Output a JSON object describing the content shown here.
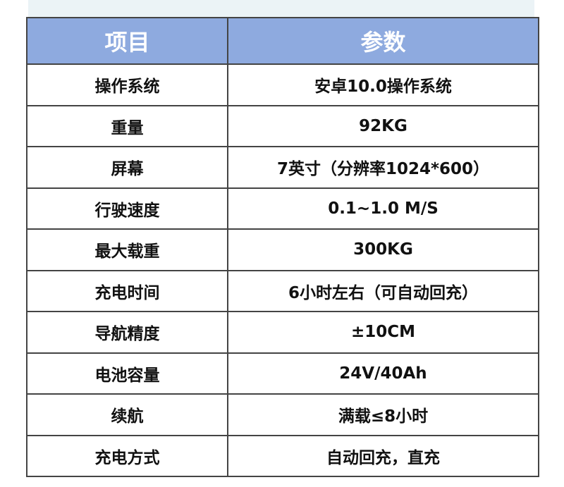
{
  "header": {
    "col1": "项目",
    "col2": "参数"
  },
  "colors": {
    "header_bg": "#8eaadf",
    "header_text": "#ffffff",
    "top_band": "#ebf3f6"
  },
  "rows": [
    {
      "item": "操作系统",
      "value": "安卓10.0操作系统"
    },
    {
      "item": "重量",
      "value": "92KG"
    },
    {
      "item": "屏幕",
      "value": "7英寸（分辨率1024*600）"
    },
    {
      "item": "行驶速度",
      "value": "0.1~1.0 M/S"
    },
    {
      "item": "最大载重",
      "value": "300KG"
    },
    {
      "item": "充电时间",
      "value": "6小时左右（可自动回充）"
    },
    {
      "item": "导航精度",
      "value": "±10CM"
    },
    {
      "item": "电池容量",
      "value": "24V/40Ah"
    },
    {
      "item": "续航",
      "value": "满载≤8小时"
    },
    {
      "item": "充电方式",
      "value": "自动回充，直充"
    }
  ]
}
